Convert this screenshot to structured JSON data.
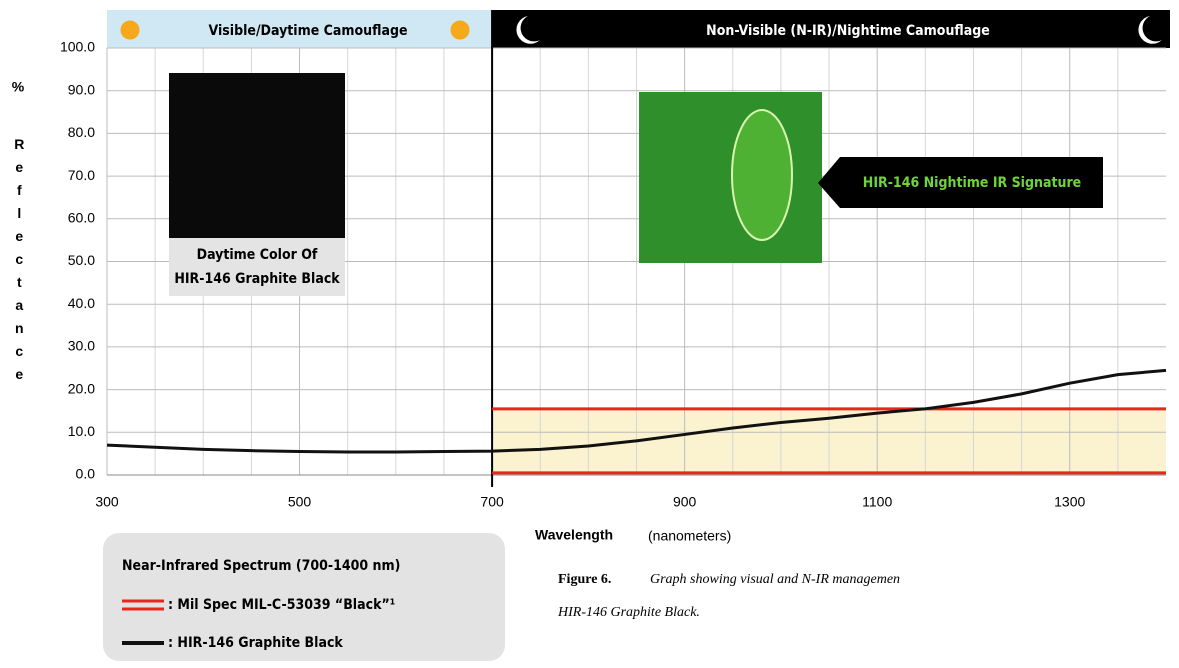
{
  "chart_data": {
    "type": "line",
    "day_header": "Visible/Daytime Camouflage",
    "night_header": "Non-Visible (N-IR)/Nightime Camouflage",
    "y_unit": "%",
    "y_label": "Reflectance",
    "x_label": "Wavelength",
    "x_unit": "(nanometers)",
    "swatch_label": [
      "Daytime Color Of",
      "HIR-146 Graphite Black"
    ],
    "ir_label": "HIR-146 Nightime IR Signature",
    "legend_title": "Near-Infrared Spectrum (700-1400 nm)",
    "caption_label": "Figure 6.",
    "caption_lines": [
      "Graph showing visual and N-IR managemen",
      "HIR-146 Graphite Black."
    ],
    "xlim": [
      300,
      1400
    ],
    "ylim": [
      0,
      100
    ],
    "xticks": [
      300,
      500,
      700,
      900,
      1100,
      1300
    ],
    "xgrid": [
      350,
      400,
      450,
      550,
      600,
      650,
      750,
      800,
      850,
      950,
      1000,
      1050,
      1150,
      1200,
      1250,
      1350
    ],
    "yticks": [
      {
        "value": 0,
        "label": "0.0"
      },
      {
        "value": 10,
        "label": "10.0"
      },
      {
        "value": 20,
        "label": "20.0"
      },
      {
        "value": 30,
        "label": "30.0"
      },
      {
        "value": 40,
        "label": "40.0"
      },
      {
        "value": 50,
        "label": "50.0"
      },
      {
        "value": 60,
        "label": "60.0"
      },
      {
        "value": 70,
        "label": "70.0"
      },
      {
        "value": 80,
        "label": "80.0"
      },
      {
        "value": 90,
        "label": "90.0"
      },
      {
        "value": 100,
        "label": "100.0"
      }
    ],
    "divider": 700,
    "grid": true,
    "spec": {
      "name": ": Mil Spec MIL-C-53039 “Black”¹",
      "color": "#e8261c",
      "fill": "#fbf3cf",
      "x": [
        700,
        1400
      ],
      "upper": [
        15.5,
        15.5
      ],
      "lower": [
        0.5,
        0.5
      ]
    },
    "series": [
      {
        "name": ": HIR-146 Graphite Black",
        "color": "#111111",
        "x": [
          300,
          350,
          400,
          450,
          500,
          550,
          600,
          650,
          700,
          750,
          800,
          850,
          900,
          950,
          1000,
          1050,
          1100,
          1150,
          1200,
          1250,
          1300,
          1350,
          1400
        ],
        "values": [
          7.0,
          6.5,
          6.0,
          5.7,
          5.5,
          5.4,
          5.4,
          5.5,
          5.6,
          6.0,
          6.8,
          8.0,
          9.5,
          11.0,
          12.3,
          13.3,
          14.5,
          15.5,
          17.0,
          19.0,
          21.5,
          23.5,
          24.5
        ]
      }
    ]
  }
}
